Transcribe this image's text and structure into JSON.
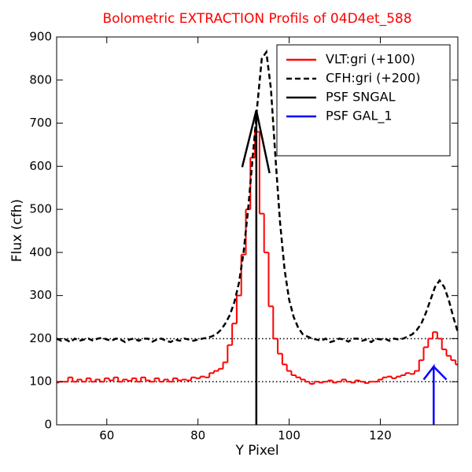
{
  "chart_data": {
    "type": "line",
    "title": "Bolometric EXTRACTION Profils of 04D4et_588",
    "title_color": "#ff0000",
    "xlabel": "Y Pixel",
    "ylabel": "Flux (cfh)",
    "xlim": [
      49,
      137
    ],
    "ylim": [
      0,
      900
    ],
    "xticks": [
      60,
      80,
      100,
      120
    ],
    "yticks": [
      0,
      100,
      200,
      300,
      400,
      500,
      600,
      700,
      800,
      900
    ],
    "hlines": [
      100,
      200
    ],
    "legend": "upper right",
    "series": [
      {
        "name": "VLT:gri (+100)",
        "color": "#ff0000",
        "style": "steps",
        "x": [
          49,
          50,
          51,
          52,
          53,
          54,
          55,
          56,
          57,
          58,
          59,
          60,
          61,
          62,
          63,
          64,
          65,
          66,
          67,
          68,
          69,
          70,
          71,
          72,
          73,
          74,
          75,
          76,
          77,
          78,
          79,
          80,
          81,
          82,
          83,
          84,
          85,
          86,
          87,
          88,
          89,
          90,
          91,
          92,
          93,
          94,
          95,
          96,
          97,
          98,
          99,
          100,
          101,
          102,
          103,
          104,
          105,
          106,
          107,
          108,
          109,
          110,
          111,
          112,
          113,
          114,
          115,
          116,
          117,
          118,
          119,
          120,
          121,
          122,
          123,
          124,
          125,
          126,
          127,
          128,
          129,
          130,
          131,
          132,
          133,
          134,
          135,
          136,
          137
        ],
        "values": [
          98,
          100,
          100,
          110,
          100,
          105,
          100,
          108,
          100,
          105,
          100,
          108,
          103,
          110,
          100,
          105,
          102,
          108,
          100,
          110,
          103,
          100,
          108,
          100,
          105,
          100,
          108,
          103,
          105,
          103,
          110,
          108,
          112,
          110,
          120,
          125,
          130,
          145,
          185,
          235,
          300,
          395,
          500,
          620,
          680,
          490,
          400,
          275,
          200,
          165,
          140,
          125,
          115,
          110,
          105,
          100,
          95,
          100,
          98,
          100,
          103,
          98,
          100,
          105,
          100,
          98,
          103,
          100,
          97,
          100,
          100,
          105,
          110,
          112,
          108,
          112,
          115,
          120,
          118,
          125,
          150,
          180,
          200,
          215,
          200,
          175,
          160,
          150,
          140
        ]
      },
      {
        "name": "CFH:gri (+200)",
        "color": "#000000",
        "style": "dashed",
        "x": [
          49,
          50,
          51,
          52,
          53,
          54,
          55,
          56,
          57,
          58,
          59,
          60,
          61,
          62,
          63,
          64,
          65,
          66,
          67,
          68,
          69,
          70,
          71,
          72,
          73,
          74,
          75,
          76,
          77,
          78,
          79,
          80,
          81,
          82,
          83,
          84,
          85,
          86,
          87,
          88,
          89,
          90,
          91,
          92,
          93,
          94,
          95,
          96,
          97,
          98,
          99,
          100,
          101,
          102,
          103,
          104,
          105,
          106,
          107,
          108,
          109,
          110,
          111,
          112,
          113,
          114,
          115,
          116,
          117,
          118,
          119,
          120,
          121,
          122,
          123,
          124,
          125,
          126,
          127,
          128,
          129,
          130,
          131,
          132,
          133,
          134,
          135,
          136,
          137
        ],
        "values": [
          200,
          195,
          198,
          192,
          200,
          195,
          198,
          200,
          195,
          200,
          202,
          198,
          195,
          200,
          198,
          192,
          198,
          200,
          195,
          200,
          200,
          193,
          198,
          200,
          195,
          192,
          198,
          195,
          200,
          198,
          195,
          198,
          200,
          202,
          205,
          210,
          220,
          235,
          255,
          285,
          330,
          400,
          500,
          620,
          740,
          850,
          865,
          780,
          620,
          470,
          360,
          290,
          250,
          225,
          210,
          205,
          200,
          198,
          195,
          200,
          192,
          195,
          200,
          198,
          193,
          200,
          200,
          195,
          198,
          192,
          200,
          198,
          200,
          195,
          200,
          198,
          200,
          205,
          210,
          220,
          235,
          260,
          290,
          320,
          335,
          320,
          290,
          250,
          215
        ]
      },
      {
        "name": "PSF SNGAL",
        "color": "#000000",
        "style": "solid",
        "x": [
          92.8,
          92.8,
          89.7,
          92.8,
          95.7
        ],
        "values": [
          0,
          730,
          598,
          730,
          584
        ]
      },
      {
        "name": "PSF GAL_1",
        "color": "#0000ff",
        "style": "solid",
        "x": [
          131.7,
          131.7,
          129.5,
          131.7,
          134.5
        ],
        "values": [
          0,
          135,
          105,
          135,
          105
        ]
      }
    ]
  }
}
